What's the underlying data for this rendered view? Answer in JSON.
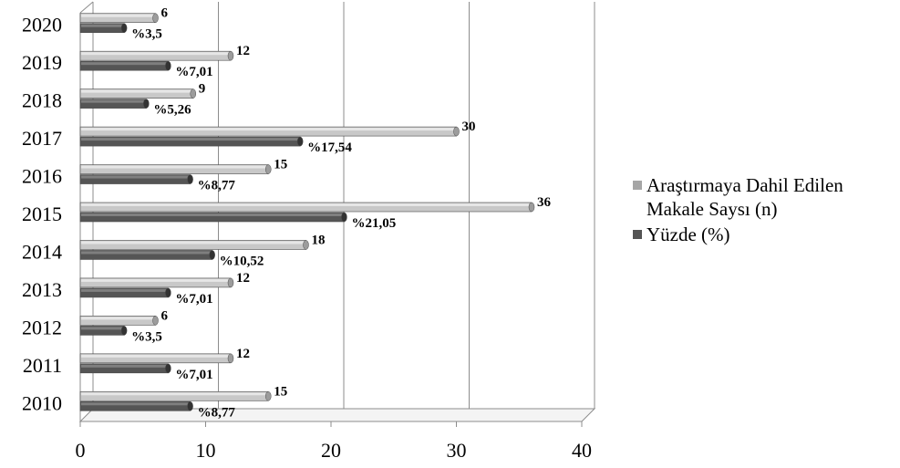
{
  "chart_data": {
    "type": "bar",
    "orientation": "horizontal",
    "categories": [
      "2010",
      "2011",
      "2012",
      "2013",
      "2014",
      "2015",
      "2016",
      "2017",
      "2018",
      "2019",
      "2020"
    ],
    "series": [
      {
        "name": "Araştırmaya Dahil Edilen Makale Saysı (n)",
        "values": [
          15,
          12,
          6,
          12,
          18,
          36,
          15,
          30,
          9,
          12,
          6
        ],
        "labels": [
          "15",
          "12",
          "6",
          "12",
          "18",
          "36",
          "15",
          "30",
          "9",
          "12",
          "6"
        ],
        "color": "#c8c8c8"
      },
      {
        "name": "Yüzde (%)",
        "values": [
          8.77,
          7.01,
          3.5,
          7.01,
          10.52,
          21.05,
          8.77,
          17.54,
          5.26,
          7.01,
          3.5
        ],
        "labels": [
          "%8,77",
          "%7,01",
          "%3,5",
          "%7,01",
          "%10,52",
          "%21,05",
          "%8,77",
          "%17,54",
          "%5,26",
          "%7,01",
          "%3,5"
        ],
        "color": "#555555"
      }
    ],
    "x_ticks": [
      "0",
      "10",
      "20",
      "30",
      "40"
    ],
    "xlim": [
      0,
      40
    ],
    "grid": true,
    "legend_position": "right"
  },
  "legend": {
    "items": [
      {
        "label": "Araştırmaya Dahil Edilen Makale Saysı (n)",
        "color": "#a6a6a6"
      },
      {
        "label": "Yüzde (%)",
        "color": "#555555"
      }
    ]
  }
}
